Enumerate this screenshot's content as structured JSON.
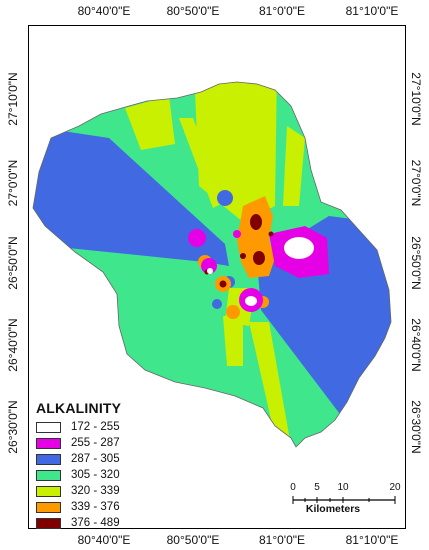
{
  "coordinates": {
    "top": [
      "80°40'0\"E",
      "80°50'0\"E",
      "81°0'0\"E",
      "81°10'0\"E"
    ],
    "bottom": [
      "80°40'0\"E",
      "80°50'0\"E",
      "81°0'0\"E",
      "81°10'0\"E"
    ],
    "left": [
      "27°10'0\"N",
      "27°0'0\"N",
      "26°50'0\"N",
      "26°40'0\"N",
      "26°30'0\"N"
    ],
    "right": [
      "27°10'0\"N",
      "27°0'0\"N",
      "26°50'0\"N",
      "26°40'0\"N",
      "26°30'0\"N"
    ]
  },
  "legend": {
    "title": "ALKALINITY",
    "items": [
      {
        "label": "172 - 255",
        "color": "#ffffff"
      },
      {
        "label": "255 - 287",
        "color": "#e600e6"
      },
      {
        "label": "287 - 305",
        "color": "#4169e1"
      },
      {
        "label": "305 - 320",
        "color": "#40e68c"
      },
      {
        "label": "320 - 339",
        "color": "#c8f000"
      },
      {
        "label": "339 - 376",
        "color": "#ff9900"
      },
      {
        "label": "376 - 489",
        "color": "#800000"
      }
    ]
  },
  "scale": {
    "ticks": [
      "0",
      "5",
      "10",
      "20"
    ],
    "unit": "Kilometers"
  }
}
